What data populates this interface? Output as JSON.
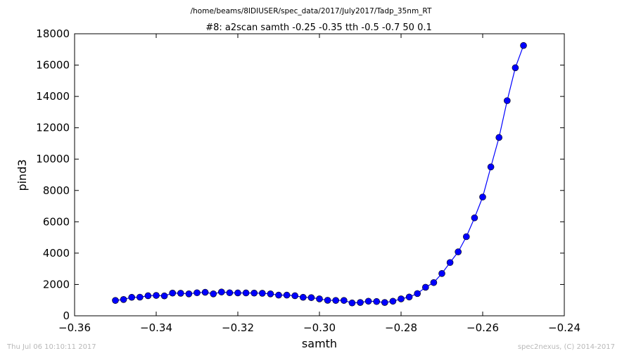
{
  "chart_data": {
    "type": "line",
    "path_title": "/home/beams/8IDIUSER/spec_data/2017/July2017/Tadp_35nm_RT",
    "title": "#8: a2scan  samth -0.25 -0.35  tth -0.5 -0.7  50 0.1",
    "xlabel": "samth",
    "ylabel": "pind3",
    "xlim": [
      -0.36,
      -0.24
    ],
    "ylim": [
      0,
      18000
    ],
    "xticks": [
      "−0.36",
      "−0.34",
      "−0.32",
      "−0.30",
      "−0.28",
      "−0.26",
      "−0.24"
    ],
    "yticks": [
      "0",
      "2000",
      "4000",
      "6000",
      "8000",
      "10000",
      "12000",
      "14000",
      "16000",
      "18000"
    ],
    "grid": false,
    "color": "#0000ff",
    "x": [
      -0.35,
      -0.348,
      -0.346,
      -0.344,
      -0.342,
      -0.34,
      -0.338,
      -0.336,
      -0.334,
      -0.332,
      -0.33,
      -0.328,
      -0.326,
      -0.324,
      -0.322,
      -0.32,
      -0.318,
      -0.316,
      -0.314,
      -0.312,
      -0.31,
      -0.308,
      -0.306,
      -0.304,
      -0.302,
      -0.3,
      -0.298,
      -0.296,
      -0.294,
      -0.292,
      -0.29,
      -0.288,
      -0.286,
      -0.284,
      -0.282,
      -0.28,
      -0.278,
      -0.276,
      -0.274,
      -0.272,
      -0.27,
      -0.268,
      -0.266,
      -0.264,
      -0.262,
      -0.26,
      -0.258,
      -0.256,
      -0.254,
      -0.252,
      -0.25
    ],
    "y": [
      980,
      1040,
      1180,
      1190,
      1280,
      1300,
      1270,
      1450,
      1440,
      1400,
      1470,
      1500,
      1400,
      1520,
      1470,
      1460,
      1460,
      1450,
      1440,
      1400,
      1320,
      1320,
      1280,
      1180,
      1160,
      1080,
      990,
      980,
      980,
      820,
      850,
      930,
      910,
      850,
      930,
      1080,
      1200,
      1420,
      1820,
      2120,
      2700,
      3400,
      4080,
      5050,
      6250,
      7580,
      9500,
      11380,
      13730,
      15830,
      17250
    ]
  },
  "footer": {
    "timestamp": "Thu Jul 06 10:10:11 2017",
    "credit": "spec2nexus, (C) 2014-2017"
  }
}
